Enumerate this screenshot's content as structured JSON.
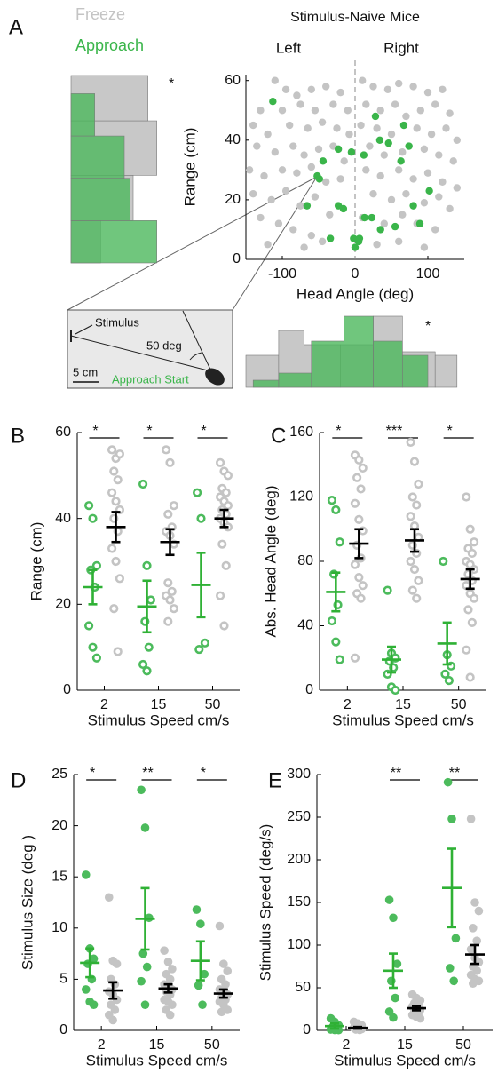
{
  "chart_data": [
    {
      "type": "scatter",
      "panel": "A",
      "title": "Stimulus-Naive Mice",
      "side_labels": [
        "Left",
        "Right"
      ],
      "xlabel": "Head Angle (deg)",
      "ylabel": "Range (cm)",
      "xlim": [
        -150,
        150
      ],
      "ylim": [
        0,
        62
      ],
      "xticks": [
        -100,
        0,
        100
      ],
      "yticks": [
        0,
        20,
        40,
        60
      ],
      "zero_line": true,
      "series": [
        {
          "name": "Freeze",
          "color": "#c4c4c4",
          "x": [
            -110,
            -95,
            -80,
            -60,
            -40,
            -20,
            -130,
            -100,
            -75,
            -55,
            -30,
            -10,
            -140,
            -120,
            -90,
            -65,
            -45,
            -25,
            -8,
            -135,
            -110,
            -85,
            -70,
            -50,
            -30,
            -15,
            -145,
            -125,
            -100,
            -80,
            -60,
            -40,
            -20,
            -140,
            -115,
            -95,
            -75,
            -55,
            -35,
            -130,
            -105,
            -85,
            -60,
            -120,
            -70,
            -45,
            10,
            25,
            45,
            60,
            80,
            100,
            120,
            15,
            35,
            55,
            70,
            90,
            110,
            130,
            8,
            30,
            50,
            85,
            105,
            125,
            140,
            20,
            40,
            65,
            95,
            115,
            135,
            15,
            35,
            60,
            80,
            100,
            120,
            140,
            25,
            50,
            70,
            95,
            115,
            130,
            10,
            40,
            65,
            85,
            110,
            30,
            60,
            95
          ],
          "values": [
            60,
            57,
            55,
            57,
            58,
            56,
            50,
            50,
            52,
            50,
            52,
            50,
            45,
            42,
            45,
            44,
            46,
            44,
            42,
            38,
            36,
            38,
            35,
            37,
            38,
            33,
            30,
            28,
            30,
            29,
            31,
            26,
            27,
            22,
            20,
            23,
            18,
            21,
            15,
            14,
            12,
            10,
            8,
            5,
            4,
            6,
            60,
            58,
            57,
            59,
            58,
            56,
            57,
            52,
            50,
            52,
            48,
            50,
            52,
            49,
            45,
            44,
            42,
            44,
            42,
            44,
            40,
            38,
            35,
            36,
            37,
            35,
            33,
            30,
            28,
            30,
            27,
            29,
            26,
            24,
            22,
            20,
            22,
            19,
            21,
            17,
            14,
            12,
            15,
            12,
            10,
            5,
            6,
            4
          ]
        },
        {
          "name": "Approach",
          "color": "#3ab54a",
          "x": [
            -113,
            28,
            67,
            46,
            34,
            74,
            -23,
            -5,
            12,
            63,
            -44,
            -52,
            -49,
            -66,
            -23,
            102,
            -16,
            13,
            23,
            55,
            35,
            -34,
            -2,
            6,
            5,
            0,
            89,
            80
          ],
          "values": [
            53,
            48,
            45,
            39,
            40,
            38,
            37,
            36,
            35,
            33,
            33,
            28,
            27,
            18,
            18,
            23,
            17,
            14,
            14,
            11,
            10,
            7,
            7,
            7,
            6,
            4,
            12,
            18
          ]
        }
      ],
      "inset": {
        "stimulus": "Stimulus",
        "angle": "50 deg",
        "scale": "5 cm",
        "start": "Approach Start"
      }
    },
    {
      "type": "histogram",
      "orientation": "horizontal",
      "xlim": [
        0,
        0.33
      ],
      "ylim": [
        0,
        62
      ],
      "annotation": "*",
      "series": [
        {
          "color": "#c8c8c8",
          "opacity": 1,
          "bins": [
            0,
            14,
            29,
            47,
            62
          ],
          "values": [
            0.1,
            0.21,
            0.29,
            0.26
          ]
        },
        {
          "color": "#4cb85c",
          "opacity": 0.8,
          "bins": [
            0,
            14,
            28,
            42,
            56
          ],
          "values": [
            0.29,
            0.2,
            0.18,
            0.08
          ]
        }
      ]
    },
    {
      "type": "histogram",
      "orientation": "vertical",
      "xlim": [
        -150,
        150
      ],
      "ylim": [
        0,
        0.25
      ],
      "annotation": "*",
      "series": [
        {
          "color": "#c8c8c8",
          "opacity": 1,
          "bins": [
            -150,
            -105,
            -70,
            -20,
            25,
            65,
            110,
            140
          ],
          "values": [
            0.09,
            0.16,
            0.12,
            0.12,
            0.2,
            0.1,
            0.09
          ]
        },
        {
          "color": "#4cb85c",
          "opacity": 0.8,
          "bins": [
            -140,
            -105,
            -60,
            -15,
            25,
            65,
            100
          ],
          "values": [
            0.02,
            0.04,
            0.13,
            0.2,
            0.13,
            0.09
          ]
        }
      ]
    },
    {
      "type": "strip",
      "panel": "B",
      "ylabel": "Range (cm)",
      "xlabel": "Stimulus Speed cm/s",
      "categories": [
        "2",
        "15",
        "50"
      ],
      "ylim": [
        0,
        60
      ],
      "yticks": [
        0,
        20,
        40,
        60
      ],
      "marker": "ring",
      "significance": [
        "*",
        "*",
        "*"
      ],
      "series": [
        {
          "color": "#4cbb5c",
          "mean_color": "#2fb135",
          "points": [
            [
              43,
              40,
              29,
              28,
              24,
              15,
              10,
              7.5
            ],
            [
              48,
              29,
              21,
              16,
              10,
              6,
              4.5
            ],
            [
              46,
              40,
              11,
              9.5
            ]
          ],
          "mean": [
            24,
            19.5,
            24.5
          ],
          "sem": [
            4,
            6,
            7.5
          ]
        },
        {
          "color": "#c4c4c4",
          "mean_color": "#000000",
          "points": [
            [
              56,
              54,
              55,
              51,
              49,
              46,
              44,
              42,
              40,
              37,
              33,
              30,
              26,
              19,
              9
            ],
            [
              56,
              53,
              43,
              41,
              38,
              37,
              36,
              34,
              25,
              23,
              22,
              21,
              19,
              16
            ],
            [
              53,
              51,
              50,
              47,
              46,
              45,
              44,
              43,
              42,
              41,
              40,
              39,
              38,
              34,
              29,
              22,
              15
            ]
          ],
          "mean": [
            38,
            34.5,
            40
          ],
          "sem": [
            3.5,
            3,
            2
          ]
        }
      ]
    },
    {
      "type": "strip",
      "panel": "C",
      "ylabel": "Abs. Head Angle (deg)",
      "xlabel": "Stimulus Speed cm/s",
      "categories": [
        "2",
        "15",
        "50"
      ],
      "ylim": [
        0,
        160
      ],
      "yticks": [
        0,
        40,
        80,
        120,
        160
      ],
      "marker": "ring",
      "significance": [
        "*",
        "***",
        "*"
      ],
      "series": [
        {
          "color": "#4cbb5c",
          "mean_color": "#2fb135",
          "points": [
            [
              118,
              112,
              92,
              72,
              53,
              43,
              30,
              19
            ],
            [
              62,
              23,
              20,
              18,
              14,
              10,
              2,
              0
            ],
            [
              80,
              22,
              15,
              10,
              6
            ]
          ],
          "mean": [
            61,
            19,
            29
          ],
          "sem": [
            12,
            8,
            13
          ]
        },
        {
          "color": "#c4c4c4",
          "mean_color": "#000000",
          "points": [
            [
              146,
              143,
              138,
              132,
              125,
              116,
              106,
              99,
              90,
              82,
              78,
              70,
              65,
              60,
              57,
              20
            ],
            [
              154,
              142,
              128,
              120,
              115,
              108,
              102,
              95,
              90,
              85,
              80,
              75,
              68,
              62,
              57
            ],
            [
              120,
              100,
              92,
              88,
              85,
              80,
              78,
              75,
              72,
              68,
              65,
              60,
              57,
              50,
              42,
              25,
              8
            ]
          ],
          "mean": [
            91,
            93,
            69
          ],
          "sem": [
            9,
            7,
            6
          ]
        }
      ]
    },
    {
      "type": "strip",
      "panel": "D",
      "ylabel": "Stimulus Size (deg )",
      "xlabel": "Stimulus Speed cm/s",
      "categories": [
        "2",
        "15",
        "50"
      ],
      "ylim": [
        0,
        25
      ],
      "yticks": [
        0,
        5,
        10,
        15,
        20,
        25
      ],
      "marker": "dot",
      "significance": [
        "*",
        "**",
        "*"
      ],
      "series": [
        {
          "color": "#4cbb5c",
          "mean_color": "#2fb135",
          "points": [
            [
              15.2,
              8,
              7,
              6.5,
              5,
              4,
              2.8,
              2.5
            ],
            [
              23.5,
              19.8,
              11,
              7.5,
              6.2,
              4.8,
              2.5
            ],
            [
              11.8,
              10.4,
              5.5,
              4.4,
              2.5
            ]
          ],
          "mean": [
            6.6,
            10.9,
            6.8
          ],
          "sem": [
            1.4,
            3,
            1.9
          ]
        },
        {
          "color": "#c4c4c4",
          "mean_color": "#000000",
          "points": [
            [
              13,
              6.8,
              6.5,
              5,
              4.5,
              3.8,
              3.5,
              3,
              2.5,
              2,
              1.5,
              1
            ],
            [
              7.8,
              6.7,
              6,
              5.5,
              5,
              4.5,
              4.2,
              4,
              3.8,
              3.5,
              3,
              2.8,
              2.5,
              2,
              1.5
            ],
            [
              10.2,
              6.5,
              5.8,
              5,
              4.5,
              4,
              3.8,
              3.5,
              3.2,
              3,
              2.8,
              2.5,
              2,
              1.8
            ]
          ],
          "mean": [
            3.9,
            4.1,
            3.6
          ],
          "sem": [
            0.8,
            0.4,
            0.4
          ]
        }
      ]
    },
    {
      "type": "strip",
      "panel": "E",
      "ylabel": "Stimulus Speed (deg/s)",
      "xlabel": "Stimulus Speed cm/s",
      "categories": [
        "2",
        "15",
        "50"
      ],
      "ylim": [
        0,
        300
      ],
      "yticks": [
        0,
        50,
        100,
        150,
        200,
        250,
        300
      ],
      "marker": "dot",
      "significance": [
        null,
        "**",
        "**"
      ],
      "series": [
        {
          "color": "#4cbb5c",
          "mean_color": "#2fb135",
          "points": [
            [
              14,
              10,
              6,
              4,
              2,
              1,
              0.5,
              0.3
            ],
            [
              153,
              132,
              78,
              58,
              38,
              22,
              15
            ],
            [
              291,
              248,
              108,
              73,
              58
            ]
          ],
          "mean": [
            5,
            70,
            167
          ],
          "sem": [
            3,
            20,
            46
          ]
        },
        {
          "color": "#c4c4c4",
          "mean_color": "#000000",
          "points": [
            [
              10,
              8,
              6,
              5,
              4,
              3,
              2,
              1.5,
              1,
              0.5
            ],
            [
              42,
              38,
              35,
              32,
              30,
              28,
              26,
              24,
              22,
              20,
              18,
              16,
              14
            ],
            [
              248,
              150,
              140,
              120,
              105,
              95,
              85,
              80,
              75,
              70,
              65,
              60,
              58,
              55
            ]
          ],
          "mean": [
            3,
            26,
            89
          ],
          "sem": [
            1,
            2.5,
            11
          ]
        }
      ]
    }
  ]
}
